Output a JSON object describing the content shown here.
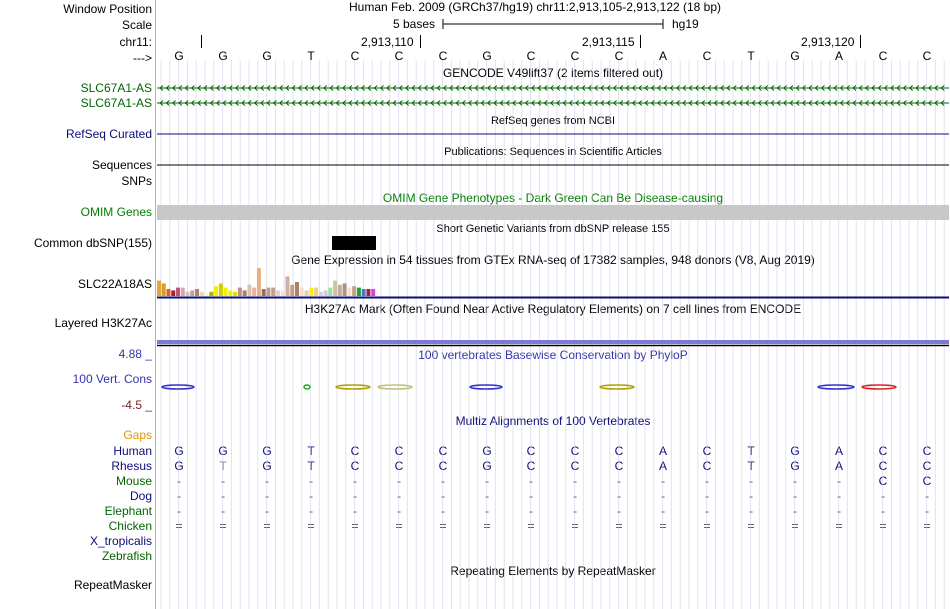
{
  "header": {
    "window_position_label": "Window Position",
    "scale_label": "Scale",
    "chrom_label": "chr11:",
    "arrow_label": "--->",
    "position_text": "Human Feb. 2009 (GRCh37/hg19)   chr11:2,913,105-2,913,122 (18 bp)",
    "scale_text": "5 bases",
    "assembly": "hg19",
    "coordinates": [
      "2,913,110",
      "2,913,115",
      "2,913,120"
    ],
    "bases": [
      "G",
      "G",
      "G",
      "T",
      "C",
      "C",
      "C",
      "G",
      "C",
      "C",
      "C",
      "A",
      "C",
      "T",
      "G",
      "A",
      "C",
      "C"
    ]
  },
  "colors": {
    "gencode": "#006400",
    "refseq": "#0c0c78",
    "omim": "#008000",
    "phylop_pos": "#3333aa",
    "phylop_neg": "#7a1f1f",
    "gaps": "#e69400",
    "grid": "#c8c8e6",
    "omim_bar": "#c8c8c8",
    "zebra_green": "#006400"
  },
  "tracks": {
    "gencode_title": "GENCODE V49lift37 (2 items filtered out)",
    "gencode_items": [
      "SLC67A1-AS",
      "SLC67A1-AS"
    ],
    "refseq_label": "RefSeq Curated",
    "refseq_title": "RefSeq genes from NCBI",
    "sequences_label": "Sequences",
    "sequences_title": "Publications: Sequences in Scientific Articles",
    "snps_label": "SNPs",
    "omim_title": "OMIM Gene Phenotypes - Dark Green Can Be Disease-causing",
    "omim_label": "OMIM Genes",
    "dbsnp_title": "Short Genetic Variants from dbSNP release 155",
    "dbsnp_label": "Common dbSNP(155)",
    "gtex_title": "Gene Expression in 54 tissues from GTEx RNA-seq of 17382 samples, 948 donors (V8, Aug 2019)",
    "gtex_label": "SLC22A18AS",
    "h3k27ac_title": "H3K27Ac Mark (Often Found Near Active Regulatory Elements) on 7 cell lines from ENCODE",
    "h3k27ac_label": "Layered H3K27Ac",
    "phylop_title": "100 vertebrates Basewise Conservation by PhyloP",
    "phylop_max": "4.88 _",
    "phylop_label": "100 Vert. Cons",
    "phylop_min": "-4.5 _",
    "multiz_title": "Multiz Alignments of 100 Vertebrates",
    "gaps_label": "Gaps",
    "repeatmasker_title": "Repeating Elements by RepeatMasker",
    "repeatmasker_label": "RepeatMasker"
  },
  "gtex_bars": [
    {
      "color": "#e8a040",
      "v": 0.55
    },
    {
      "color": "#d9a020",
      "v": 0.45
    },
    {
      "color": "#e06020",
      "v": 0.25
    },
    {
      "color": "#a02040",
      "v": 0.2
    },
    {
      "color": "#c05070",
      "v": 0.3
    },
    {
      "color": "#e0a0b0",
      "v": 0.3
    },
    {
      "color": "#d0c0c0",
      "v": 0.15
    },
    {
      "color": "#c0a090",
      "v": 0.2
    },
    {
      "color": "#b08080",
      "v": 0.25
    },
    {
      "color": "#e0e0a0",
      "v": 0.15
    },
    {
      "color": "#f0f0f0",
      "v": 0.1
    },
    {
      "color": "#b0b000",
      "v": 0.15
    },
    {
      "color": "#f0f000",
      "v": 0.35
    },
    {
      "color": "#d0d000",
      "v": 0.45
    },
    {
      "color": "#f0f000",
      "v": 0.3
    },
    {
      "color": "#f0f000",
      "v": 0.2
    },
    {
      "color": "#e0e000",
      "v": 0.15
    },
    {
      "color": "#c09080",
      "v": 0.3
    },
    {
      "color": "#a08070",
      "v": 0.2
    },
    {
      "color": "#e0c0b0",
      "v": 0.4
    },
    {
      "color": "#f0b0a0",
      "v": 0.3
    },
    {
      "color": "#e8b080",
      "v": 1.0
    },
    {
      "color": "#907060",
      "v": 0.25
    },
    {
      "color": "#c0a080",
      "v": 0.3
    },
    {
      "color": "#c0a090",
      "v": 0.3
    },
    {
      "color": "#e0d0d0",
      "v": 0.2
    },
    {
      "color": "#f0e0e0",
      "v": 0.2
    },
    {
      "color": "#d0b0a0",
      "v": 0.7
    },
    {
      "color": "#c0a080",
      "v": 0.4
    },
    {
      "color": "#b08060",
      "v": 0.5
    },
    {
      "color": "#f0e0d0",
      "v": 0.3
    },
    {
      "color": "#e0d0b0",
      "v": 0.2
    },
    {
      "color": "#f0f020",
      "v": 0.3
    },
    {
      "color": "#f0d080",
      "v": 0.3
    },
    {
      "color": "#d0d0f0",
      "v": 0.15
    },
    {
      "color": "#d0d0d0",
      "v": 0.2
    },
    {
      "color": "#a0e0a0",
      "v": 0.3
    },
    {
      "color": "#d0c0a0",
      "v": 0.55
    },
    {
      "color": "#c0b0a0",
      "v": 0.4
    },
    {
      "color": "#b09080",
      "v": 0.45
    },
    {
      "color": "#f0e0d0",
      "v": 0.3
    },
    {
      "color": "#c0a080",
      "v": 0.35
    },
    {
      "color": "#20a040",
      "v": 0.3
    },
    {
      "color": "#4080c0",
      "v": 0.25
    },
    {
      "color": "#a02050",
      "v": 0.25
    },
    {
      "color": "#e040e0",
      "v": 0.25
    }
  ],
  "multiz": {
    "species": [
      {
        "name": "Human",
        "color": "#0c0c78",
        "bases": [
          "G",
          "G",
          "G",
          "T",
          "C",
          "C",
          "C",
          "G",
          "C",
          "C",
          "C",
          "A",
          "C",
          "T",
          "G",
          "A",
          "C",
          "C"
        ]
      },
      {
        "name": "Rhesus",
        "color": "#0c0c78",
        "bases": [
          "G",
          "T",
          "G",
          "T",
          "C",
          "C",
          "C",
          "G",
          "C",
          "C",
          "C",
          "A",
          "C",
          "T",
          "G",
          "A",
          "C",
          "C"
        ]
      },
      {
        "name": "Mouse",
        "color": "#006400",
        "bases": [
          "-",
          "-",
          "-",
          "-",
          "-",
          "-",
          "-",
          "-",
          "-",
          "-",
          "-",
          "-",
          "-",
          "-",
          "-",
          "-",
          "C",
          "C"
        ]
      },
      {
        "name": "Dog",
        "color": "#0c0c78",
        "bases": [
          "-",
          "-",
          "-",
          "-",
          "-",
          "-",
          "-",
          "-",
          "-",
          "-",
          "-",
          "-",
          "-",
          "-",
          "-",
          "-",
          "-",
          "-"
        ]
      },
      {
        "name": "Elephant",
        "color": "#006400",
        "bases": [
          "-",
          "-",
          "-",
          "-",
          "-",
          "-",
          "-",
          "-",
          "-",
          "-",
          "-",
          "-",
          "-",
          "-",
          "-",
          "-",
          "-",
          "-"
        ]
      },
      {
        "name": "Chicken",
        "color": "#006400",
        "bases": [
          "=",
          "=",
          "=",
          "=",
          "=",
          "=",
          "=",
          "=",
          "=",
          "=",
          "=",
          "=",
          "=",
          "=",
          "=",
          "=",
          "=",
          "="
        ]
      },
      {
        "name": "X_tropicalis",
        "color": "#0c0c78",
        "bases": []
      },
      {
        "name": "Zebrafish",
        "color": "#006400",
        "bases": []
      }
    ]
  }
}
